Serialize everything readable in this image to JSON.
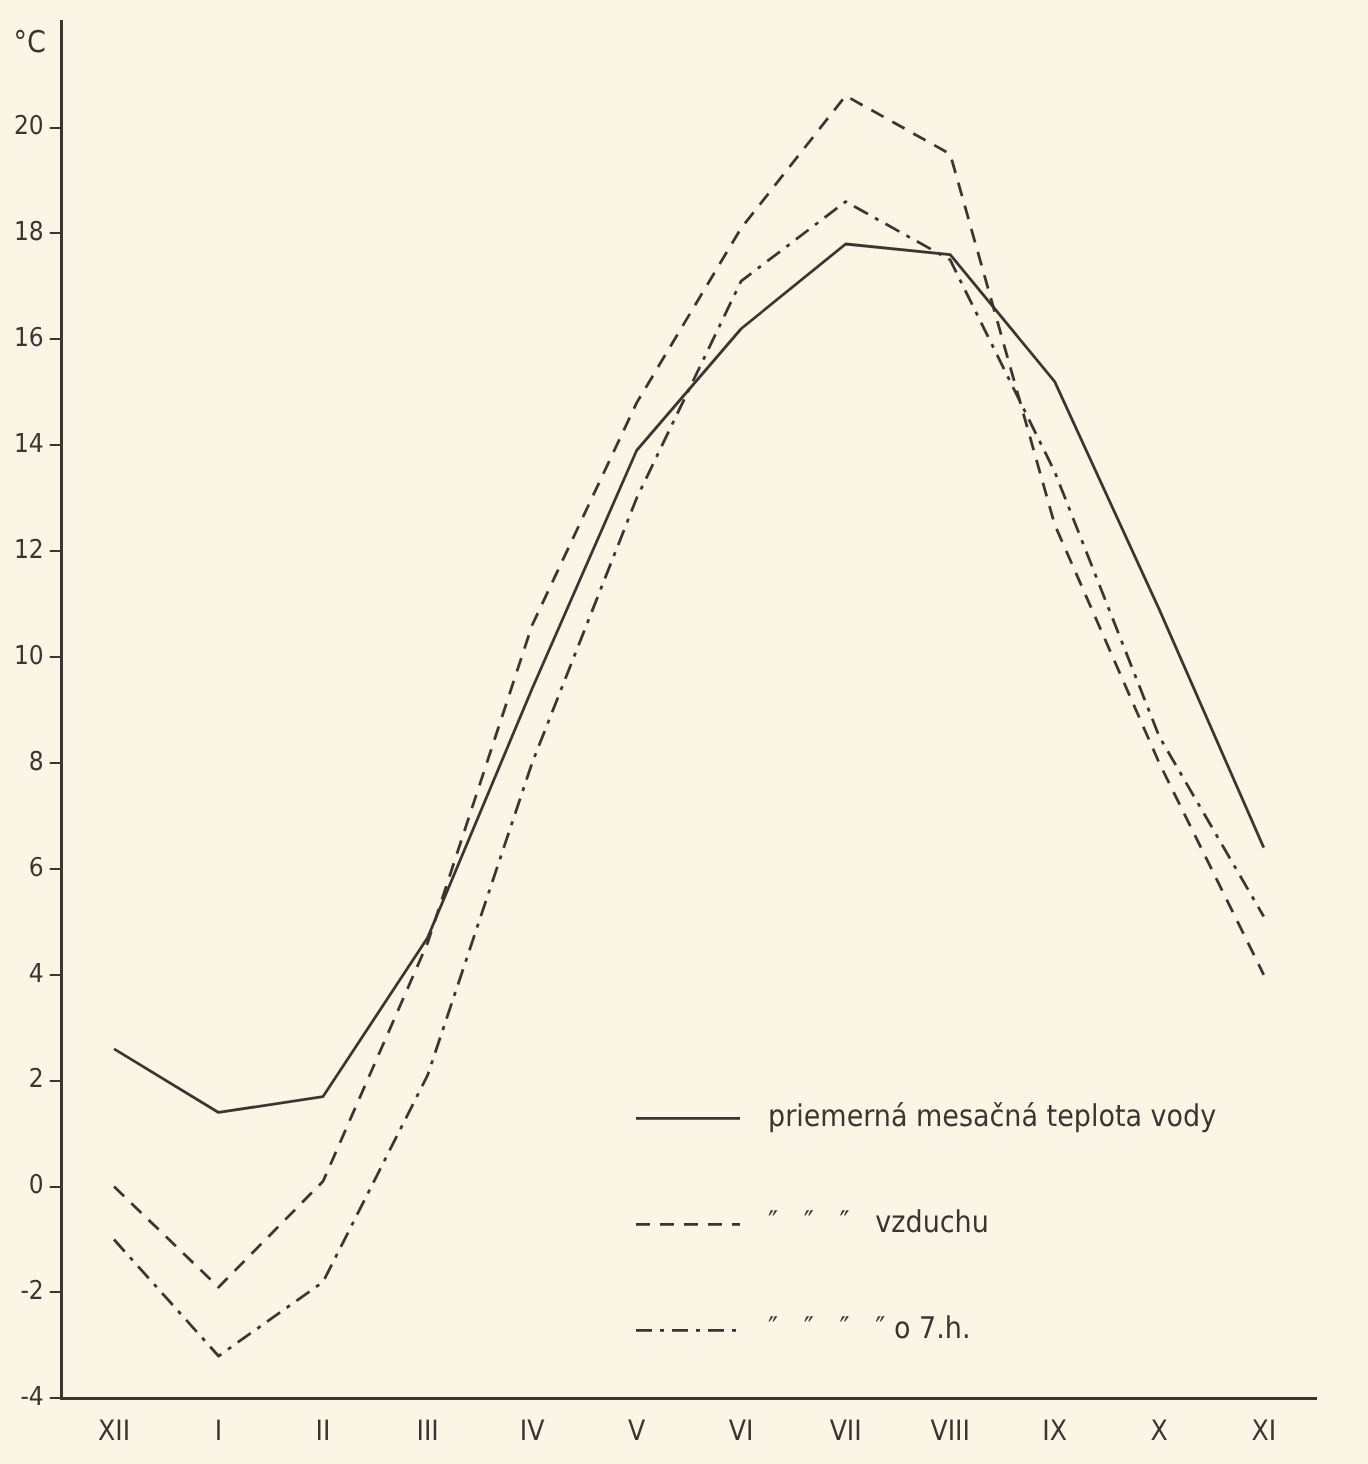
{
  "chart_data": {
    "type": "line",
    "ylabel": "°C",
    "categories": [
      "XII",
      "I",
      "II",
      "III",
      "IV",
      "V",
      "VI",
      "VII",
      "VIII",
      "IX",
      "X",
      "XI"
    ],
    "series": [
      {
        "name": "priemerná mesačná teplota vody",
        "color": "#3a3530",
        "line_style": "solid",
        "values": [
          2.6,
          1.4,
          1.7,
          4.7,
          9.4,
          13.9,
          16.2,
          17.8,
          17.6,
          15.2,
          10.9,
          6.4
        ]
      },
      {
        "name": "″   ″   ″   vzduchu",
        "color": "#3a3530",
        "line_style": "dashed",
        "values": [
          0.0,
          -1.9,
          0.1,
          4.6,
          10.6,
          14.8,
          18.1,
          20.6,
          19.5,
          12.5,
          8.0,
          4.0
        ]
      },
      {
        "name": "″   ″   ″   ″ o 7.h.",
        "color": "#3a3530",
        "line_style": "dashdot",
        "values": [
          -1.0,
          -3.2,
          -1.8,
          2.1,
          8.0,
          13.0,
          17.1,
          18.6,
          17.5,
          13.5,
          8.5,
          5.1
        ]
      }
    ],
    "ylim": [
      -4,
      22
    ],
    "yticks": [
      -4,
      -2,
      0,
      2,
      4,
      6,
      8,
      10,
      12,
      14,
      16,
      18,
      20
    ],
    "grid": false,
    "legend": "bottom right",
    "marker": "none"
  }
}
